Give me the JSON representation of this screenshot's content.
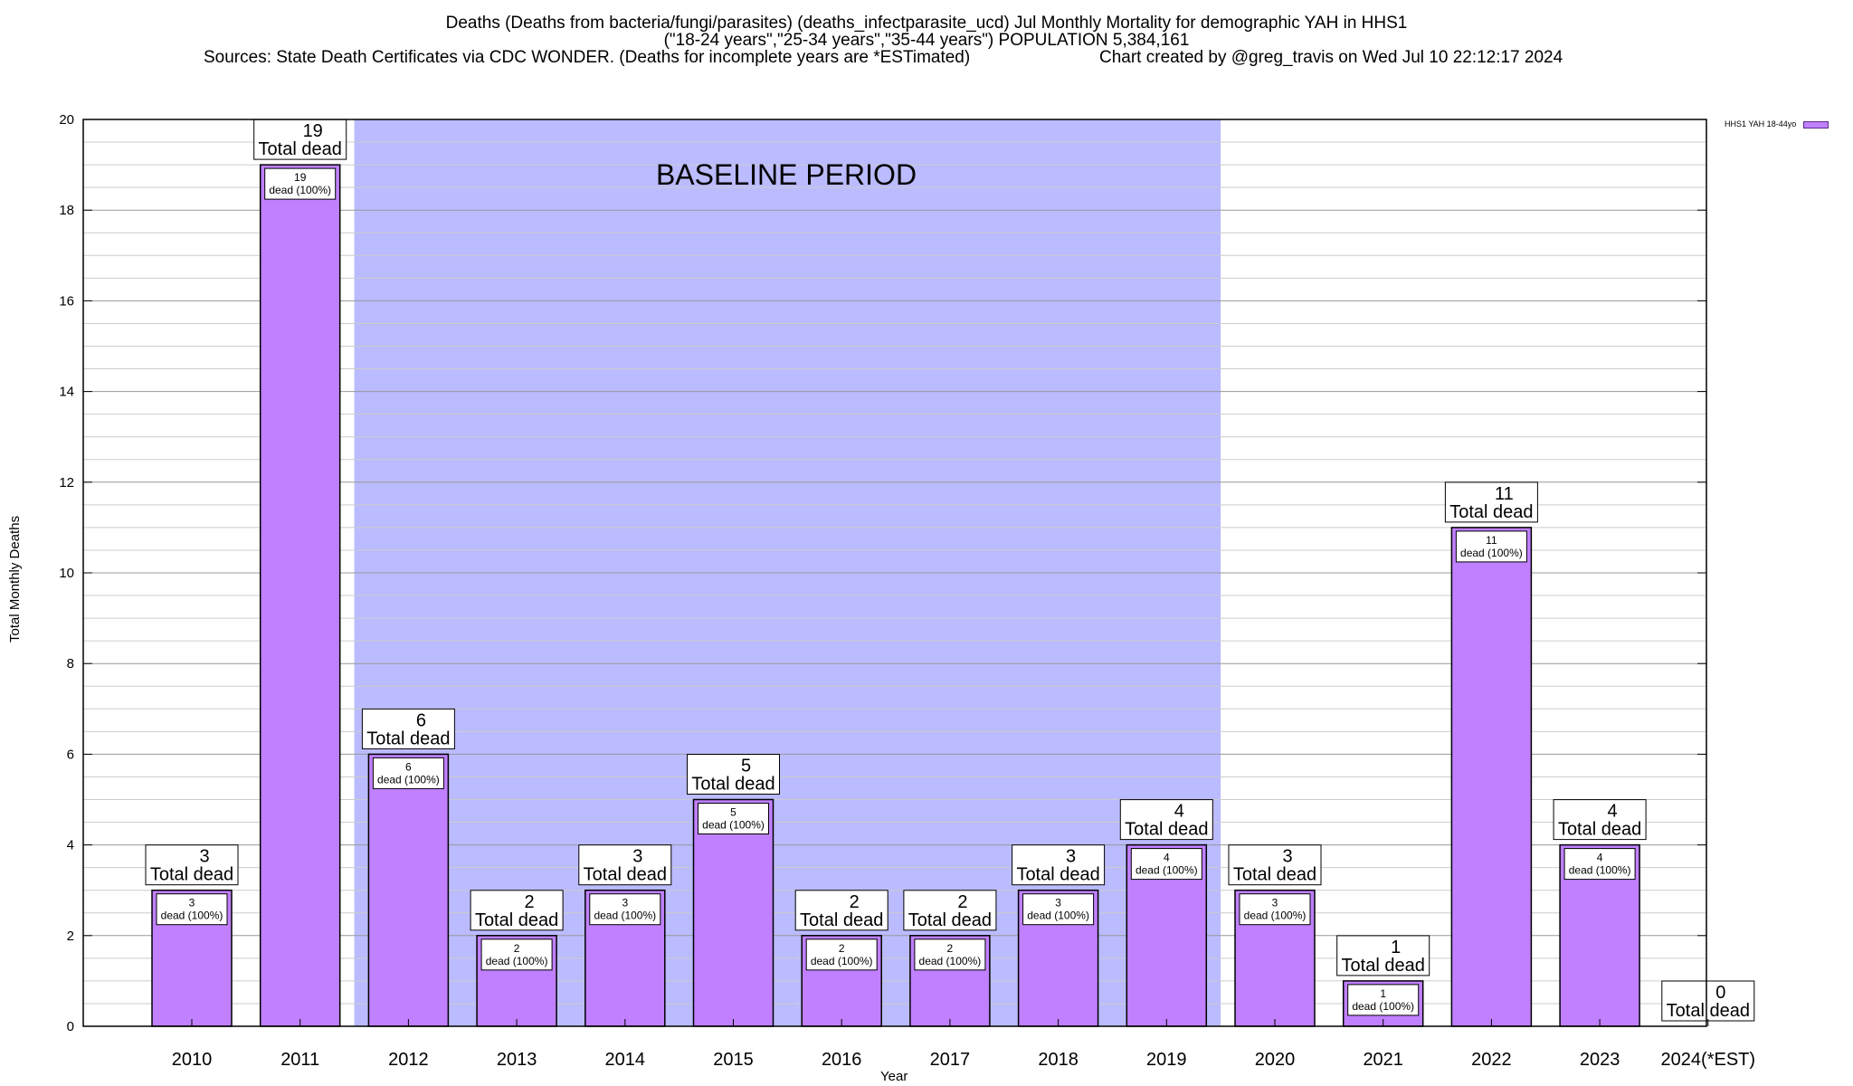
{
  "header": {
    "line1": "Deaths (Deaths from bacteria/fungi/parasites) (deaths_infectparasite_ucd) Jul Monthly Mortality for demographic YAH in HHS1",
    "line2": "(\"18-24 years\",\"25-34 years\",\"35-44 years\") POPULATION 5,384,161",
    "line3_left": "Sources: State Death Certificates via CDC WONDER. (Deaths for incomplete years are *ESTimated)",
    "line3_right": "Chart created by @greg_travis on Wed Jul 10 22:12:17 2024"
  },
  "chart_data": {
    "type": "bar",
    "categories": [
      "2010",
      "2011",
      "2012",
      "2013",
      "2014",
      "2015",
      "2016",
      "2017",
      "2018",
      "2019",
      "2020",
      "2021",
      "2022",
      "2023",
      "2024(*EST)"
    ],
    "series": [
      {
        "name": "HHS1 YAH 18-44yo",
        "values": [
          3,
          19,
          6,
          2,
          3,
          5,
          2,
          2,
          3,
          4,
          3,
          1,
          11,
          4,
          0
        ]
      }
    ],
    "total_label_suffix": "Total dead",
    "inner_label_suffix": "dead (100%)",
    "xlabel": "Year",
    "ylabel": "Total Monthly Deaths",
    "ylim": [
      0,
      20
    ],
    "yticks": [
      0,
      2,
      4,
      6,
      8,
      10,
      12,
      14,
      16,
      18,
      20
    ],
    "minor_grid_step": 0.5,
    "baseline_band": {
      "from_category": "2012",
      "to_category": "2019",
      "label": "BASELINE PERIOD"
    },
    "legend_position": "top-right",
    "grid": true,
    "colors": {
      "bar_fill": "#c080ff",
      "bar_stroke": "#000000",
      "baseline_band": "#bbbbff",
      "grid_major": "#999999",
      "grid_minor": "#cccccc"
    }
  }
}
